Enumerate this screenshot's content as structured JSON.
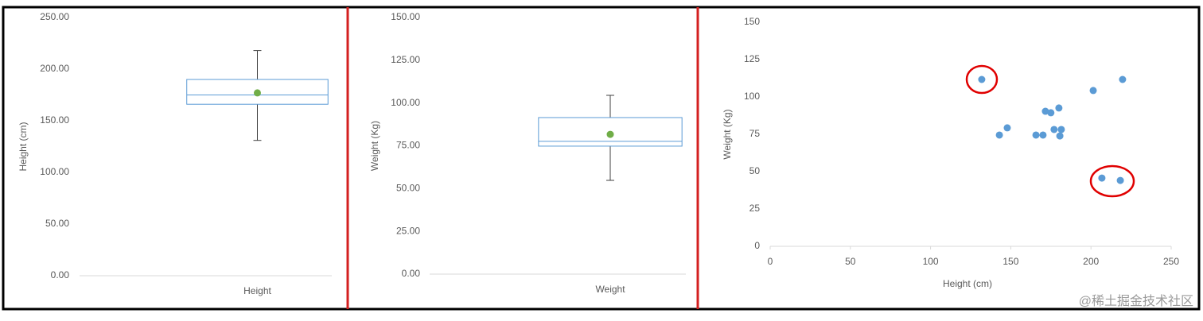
{
  "chart_data": [
    {
      "type": "box",
      "y_label": "Height (cm)",
      "categories": [
        "Height"
      ],
      "boxes": [
        {
          "min": 131,
          "q1": 166,
          "median": 175,
          "q3": 190,
          "max": 218,
          "mean": 177
        }
      ],
      "box_color": "#5b9bd5",
      "whisker_color": "#404040",
      "mean_color": "#70ad47",
      "ylim": [
        0,
        250
      ],
      "yticks": [
        {
          "value": 0,
          "label": "0.00"
        },
        {
          "value": 50,
          "label": "50.00"
        },
        {
          "value": 100,
          "label": "100.00"
        },
        {
          "value": 150,
          "label": "150.00"
        },
        {
          "value": 200,
          "label": "200.00"
        },
        {
          "value": 250,
          "label": "250.00"
        }
      ],
      "grid": false
    },
    {
      "type": "box",
      "y_label": "Weight (Kg)",
      "categories": [
        "Weight"
      ],
      "boxes": [
        {
          "min": 54.8,
          "q1": 74.8,
          "median": 77.6,
          "q3": 91.5,
          "max": 104.5,
          "mean": 81.7
        }
      ],
      "box_color": "#5b9bd5",
      "whisker_color": "#404040",
      "mean_color": "#70ad47",
      "ylim": [
        0,
        150
      ],
      "yticks": [
        {
          "value": 0,
          "label": "0.00"
        },
        {
          "value": 25,
          "label": "25.00"
        },
        {
          "value": 50,
          "label": "50.00"
        },
        {
          "value": 75,
          "label": "75.00"
        },
        {
          "value": 100,
          "label": "100.00"
        },
        {
          "value": 125,
          "label": "125.00"
        },
        {
          "value": 150,
          "label": "150.00"
        }
      ],
      "grid": false
    },
    {
      "type": "scatter",
      "x_label": "Height (cm)",
      "y_label": "Weight (Kg)",
      "x": [
        131.9,
        142.9,
        147.8,
        165.7,
        170.1,
        171.6,
        175,
        177,
        180,
        180.6,
        181.5,
        201.4,
        219.7,
        206.8,
        218.3
      ],
      "values": [
        111.7,
        74.5,
        79.3,
        74.5,
        74.5,
        90.4,
        89.4,
        78.2,
        92.6,
        73.9,
        78.2,
        104.3,
        111.7,
        45.7,
        44.1
      ],
      "color": "#5b9bd5",
      "xlim": [
        0,
        250
      ],
      "xticks": [
        0,
        50,
        100,
        150,
        200,
        250
      ],
      "ylim": [
        0,
        150
      ],
      "yticks": [
        0,
        25,
        50,
        75,
        100,
        125,
        150
      ],
      "grid": false
    }
  ],
  "watermark": "@稀土掘金技术社区"
}
